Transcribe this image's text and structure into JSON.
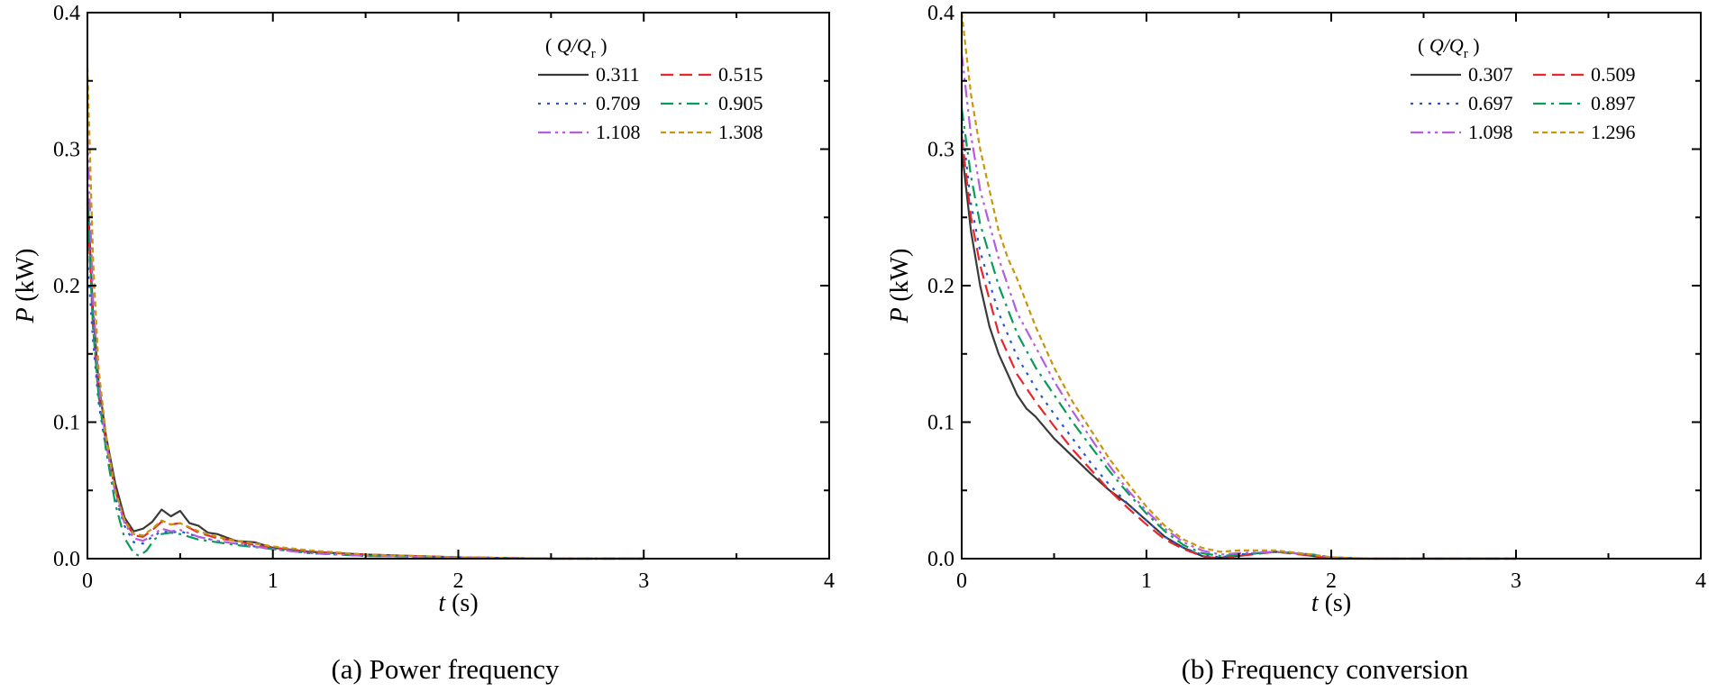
{
  "chart_data": [
    {
      "type": "line",
      "id": "a",
      "caption": "(a) Power frequency",
      "xlabel": "t (s)",
      "ylabel": "P (kW)",
      "xlim": [
        0,
        4
      ],
      "ylim": [
        0,
        0.4
      ],
      "xticks": [
        0,
        1,
        2,
        3,
        4
      ],
      "yticks": [
        0.0,
        0.1,
        0.2,
        0.3,
        0.4
      ],
      "ytick_labels": [
        "0.0",
        "0.1",
        "0.2",
        "0.3",
        "0.4"
      ],
      "legend_title": "( Q/Qr )",
      "legend_position": "top-right",
      "series": [
        {
          "name": "0.311",
          "color": "#3a3a3a",
          "dash": "solid",
          "x": [
            0,
            0.03,
            0.06,
            0.1,
            0.15,
            0.2,
            0.25,
            0.3,
            0.35,
            0.4,
            0.45,
            0.5,
            0.55,
            0.6,
            0.65,
            0.7,
            0.8,
            0.9,
            1.0,
            1.2,
            1.5,
            2.0,
            2.5,
            3.0
          ],
          "y": [
            0.27,
            0.18,
            0.13,
            0.09,
            0.055,
            0.03,
            0.02,
            0.022,
            0.027,
            0.036,
            0.031,
            0.035,
            0.026,
            0.024,
            0.019,
            0.018,
            0.013,
            0.012,
            0.008,
            0.005,
            0.003,
            0.001,
            0.0,
            0.0
          ]
        },
        {
          "name": "0.515",
          "color": "#e8262e",
          "dash": "dashed",
          "x": [
            0,
            0.03,
            0.06,
            0.1,
            0.15,
            0.2,
            0.25,
            0.3,
            0.35,
            0.4,
            0.45,
            0.5,
            0.6,
            0.7,
            0.8,
            0.9,
            1.0,
            1.2,
            1.5,
            2.0,
            2.5,
            3.0
          ],
          "y": [
            0.26,
            0.17,
            0.12,
            0.085,
            0.05,
            0.028,
            0.017,
            0.016,
            0.021,
            0.027,
            0.025,
            0.026,
            0.019,
            0.015,
            0.013,
            0.01,
            0.008,
            0.005,
            0.003,
            0.001,
            0.0,
            0.0
          ]
        },
        {
          "name": "0.709",
          "color": "#1f55d8",
          "dash": "dotted",
          "x": [
            0,
            0.03,
            0.06,
            0.1,
            0.15,
            0.2,
            0.25,
            0.3,
            0.35,
            0.4,
            0.45,
            0.5,
            0.6,
            0.7,
            0.8,
            0.9,
            1.0,
            1.2,
            1.5,
            2.0,
            2.5,
            3.0
          ],
          "y": [
            0.22,
            0.16,
            0.115,
            0.08,
            0.045,
            0.024,
            0.012,
            0.011,
            0.016,
            0.02,
            0.019,
            0.02,
            0.016,
            0.013,
            0.011,
            0.009,
            0.007,
            0.004,
            0.002,
            0.001,
            0.0,
            0.0
          ]
        },
        {
          "name": "0.905",
          "color": "#0a9a5a",
          "dash": "dashdot",
          "x": [
            0,
            0.03,
            0.06,
            0.1,
            0.15,
            0.2,
            0.25,
            0.28,
            0.32,
            0.36,
            0.4,
            0.45,
            0.5,
            0.6,
            0.7,
            0.8,
            1.0,
            1.2,
            1.5,
            2.0,
            2.5,
            3.0
          ],
          "y": [
            0.26,
            0.17,
            0.12,
            0.08,
            0.04,
            0.015,
            0.004,
            0.002,
            0.006,
            0.014,
            0.018,
            0.019,
            0.018,
            0.014,
            0.012,
            0.01,
            0.007,
            0.004,
            0.002,
            0.001,
            0.0,
            0.0
          ]
        },
        {
          "name": "1.108",
          "color": "#b35ee0",
          "dash": "dashdotdot",
          "x": [
            0,
            0.03,
            0.06,
            0.1,
            0.15,
            0.2,
            0.25,
            0.3,
            0.35,
            0.4,
            0.45,
            0.5,
            0.6,
            0.7,
            0.8,
            0.9,
            1.0,
            1.2,
            1.5,
            2.0,
            2.5,
            3.0
          ],
          "y": [
            0.31,
            0.19,
            0.13,
            0.085,
            0.048,
            0.026,
            0.015,
            0.013,
            0.017,
            0.022,
            0.02,
            0.021,
            0.016,
            0.013,
            0.011,
            0.009,
            0.007,
            0.004,
            0.002,
            0.001,
            0.0,
            0.0
          ]
        },
        {
          "name": "1.308",
          "color": "#c8960a",
          "dash": "shortdash",
          "x": [
            0,
            0.03,
            0.06,
            0.1,
            0.15,
            0.2,
            0.25,
            0.3,
            0.35,
            0.4,
            0.45,
            0.5,
            0.6,
            0.7,
            0.8,
            0.9,
            1.0,
            1.2,
            1.5,
            2.0,
            2.5,
            3.0
          ],
          "y": [
            0.36,
            0.22,
            0.14,
            0.09,
            0.05,
            0.028,
            0.018,
            0.017,
            0.022,
            0.028,
            0.025,
            0.026,
            0.02,
            0.016,
            0.013,
            0.011,
            0.009,
            0.006,
            0.003,
            0.001,
            0.0,
            0.0
          ]
        }
      ]
    },
    {
      "type": "line",
      "id": "b",
      "caption": "(b) Frequency conversion",
      "xlabel": "t (s)",
      "ylabel": "P (kW)",
      "xlim": [
        0,
        4
      ],
      "ylim": [
        0,
        0.4
      ],
      "xticks": [
        0,
        1,
        2,
        3,
        4
      ],
      "yticks": [
        0.0,
        0.1,
        0.2,
        0.3,
        0.4
      ],
      "ytick_labels": [
        "0.0",
        "0.1",
        "0.2",
        "0.3",
        "0.4"
      ],
      "legend_title": "( Q/Qr )",
      "legend_position": "top-right",
      "series": [
        {
          "name": "0.307",
          "color": "#3a3a3a",
          "dash": "solid",
          "x": [
            0,
            0.05,
            0.1,
            0.15,
            0.2,
            0.3,
            0.35,
            0.4,
            0.5,
            0.6,
            0.7,
            0.8,
            0.9,
            1.0,
            1.1,
            1.2,
            1.3,
            1.35,
            1.5,
            1.6,
            1.7,
            1.8,
            1.9,
            2.0,
            2.2,
            3.0
          ],
          "y": [
            0.3,
            0.24,
            0.2,
            0.17,
            0.15,
            0.12,
            0.11,
            0.104,
            0.088,
            0.075,
            0.062,
            0.05,
            0.04,
            0.028,
            0.016,
            0.008,
            0.002,
            0.0,
            0.002,
            0.004,
            0.005,
            0.004,
            0.002,
            0.0,
            0.0,
            0.0
          ]
        },
        {
          "name": "0.509",
          "color": "#e8262e",
          "dash": "dashed",
          "x": [
            0,
            0.05,
            0.1,
            0.2,
            0.3,
            0.4,
            0.5,
            0.6,
            0.7,
            0.8,
            0.9,
            1.0,
            1.1,
            1.2,
            1.3,
            1.4,
            1.5,
            1.7,
            1.9,
            2.0,
            2.2,
            3.0
          ],
          "y": [
            0.31,
            0.25,
            0.215,
            0.165,
            0.135,
            0.115,
            0.097,
            0.08,
            0.065,
            0.05,
            0.037,
            0.025,
            0.014,
            0.007,
            0.002,
            0.0,
            0.002,
            0.005,
            0.002,
            0.0,
            0.0,
            0.0
          ]
        },
        {
          "name": "0.697",
          "color": "#1f55d8",
          "dash": "dotted",
          "x": [
            0,
            0.05,
            0.1,
            0.2,
            0.3,
            0.4,
            0.5,
            0.6,
            0.7,
            0.8,
            0.9,
            1.0,
            1.1,
            1.2,
            1.3,
            1.4,
            1.5,
            1.7,
            1.9,
            2.0,
            2.2,
            3.0
          ],
          "y": [
            0.32,
            0.26,
            0.225,
            0.18,
            0.148,
            0.125,
            0.106,
            0.088,
            0.07,
            0.054,
            0.04,
            0.028,
            0.016,
            0.008,
            0.003,
            0.001,
            0.003,
            0.005,
            0.003,
            0.001,
            0.0,
            0.0
          ]
        },
        {
          "name": "0.897",
          "color": "#0a9a5a",
          "dash": "dashdot",
          "x": [
            0,
            0.05,
            0.1,
            0.2,
            0.3,
            0.4,
            0.5,
            0.6,
            0.7,
            0.8,
            0.9,
            1.0,
            1.1,
            1.2,
            1.3,
            1.4,
            1.5,
            1.7,
            1.9,
            2.0,
            2.2,
            3.0
          ],
          "y": [
            0.33,
            0.28,
            0.245,
            0.2,
            0.165,
            0.14,
            0.12,
            0.1,
            0.082,
            0.064,
            0.048,
            0.033,
            0.02,
            0.01,
            0.004,
            0.002,
            0.003,
            0.005,
            0.003,
            0.001,
            0.0,
            0.0
          ]
        },
        {
          "name": "1.098",
          "color": "#b35ee0",
          "dash": "dashdotdot",
          "x": [
            0,
            0.05,
            0.1,
            0.2,
            0.3,
            0.4,
            0.5,
            0.6,
            0.7,
            0.8,
            0.9,
            1.0,
            1.1,
            1.2,
            1.3,
            1.4,
            1.5,
            1.7,
            1.9,
            2.0,
            2.2,
            3.0
          ],
          "y": [
            0.37,
            0.31,
            0.27,
            0.22,
            0.18,
            0.155,
            0.13,
            0.108,
            0.088,
            0.068,
            0.05,
            0.035,
            0.022,
            0.012,
            0.006,
            0.003,
            0.004,
            0.005,
            0.003,
            0.001,
            0.0,
            0.0
          ]
        },
        {
          "name": "1.296",
          "color": "#c8960a",
          "dash": "shortdash",
          "x": [
            0,
            0.05,
            0.1,
            0.2,
            0.25,
            0.3,
            0.4,
            0.5,
            0.6,
            0.7,
            0.8,
            0.9,
            1.0,
            1.1,
            1.2,
            1.3,
            1.4,
            1.5,
            1.7,
            1.9,
            2.0,
            2.2,
            3.0
          ],
          "y": [
            0.4,
            0.34,
            0.3,
            0.24,
            0.22,
            0.205,
            0.17,
            0.14,
            0.115,
            0.094,
            0.073,
            0.055,
            0.038,
            0.024,
            0.014,
            0.008,
            0.005,
            0.006,
            0.006,
            0.003,
            0.001,
            0.0,
            0.0
          ]
        }
      ]
    }
  ]
}
